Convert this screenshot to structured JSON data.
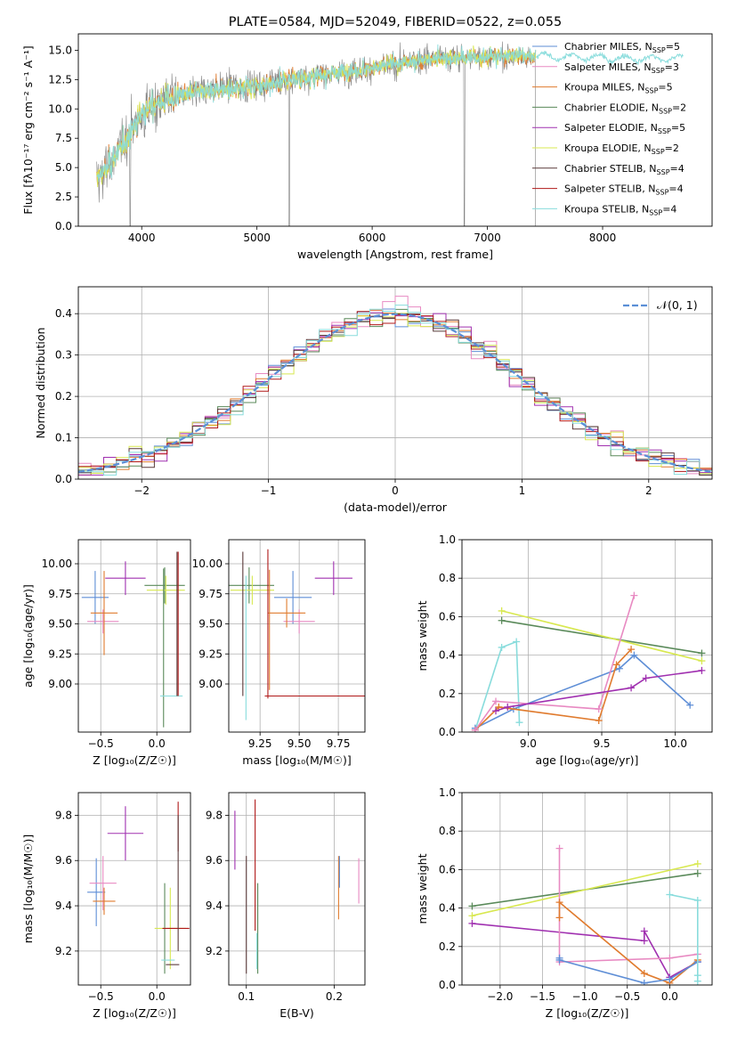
{
  "figure_title": "PLATE=0584, MJD=52049, FIBERID=0522, z=0.055",
  "chart_data": [
    {
      "type": "line",
      "name": "spectrum",
      "xlabel": "wavelength [Angstrom, rest frame]",
      "ylabel": "Flux [f$_\\lambda$10$^{-17}$ erg cm$^{-2}$ s$^{-1}$ A$^{-1}$]",
      "ylabel_display": "Flux [fλ10⁻¹⁷ erg cm⁻² s⁻¹ A⁻¹]",
      "xlim": [
        3450,
        8950
      ],
      "ylim": [
        0,
        16.4
      ],
      "xticks": [
        "4000",
        "5000",
        "6000",
        "7000",
        "8000"
      ],
      "yticks": [
        "0.0",
        "2.5",
        "5.0",
        "7.5",
        "10.0",
        "12.5",
        "15.0"
      ],
      "grid": false,
      "legend_position": "upper right",
      "legend": [
        {
          "label": "Chabrier MILES, N$_{SSP}$=5",
          "color": "#5e8ed6"
        },
        {
          "label": "Salpeter MILES, N$_{SSP}$=3",
          "color": "#e88ac2"
        },
        {
          "label": "Kroupa MILES, N$_{SSP}$=5",
          "color": "#e07b2e"
        },
        {
          "label": "Chabrier ELODIE, N$_{SSP}$=2",
          "color": "#5a8a5a"
        },
        {
          "label": "Salpeter ELODIE, N$_{SSP}$=5",
          "color": "#a030b0"
        },
        {
          "label": "Kroupa ELODIE, N$_{SSP}$=2",
          "color": "#d8e850"
        },
        {
          "label": "Chabrier STELIB, N$_{SSP}$=4",
          "color": "#5a3a3a"
        },
        {
          "label": "Salpeter STELIB, N$_{SSP}$=4",
          "color": "#b01818"
        },
        {
          "label": "Kroupa STELIB, N$_{SSP}$=4",
          "color": "#88dcdc"
        }
      ],
      "data_color": "#808080",
      "continuum_points": [
        [
          3610,
          4.0
        ],
        [
          3700,
          5.0
        ],
        [
          3850,
          7.2
        ],
        [
          4000,
          9.6
        ],
        [
          4200,
          10.8
        ],
        [
          4500,
          11.5
        ],
        [
          5000,
          12.0
        ],
        [
          5500,
          12.8
        ],
        [
          6000,
          13.5
        ],
        [
          6500,
          14.3
        ],
        [
          7000,
          14.5
        ],
        [
          7400,
          14.5
        ],
        [
          7800,
          14.4
        ],
        [
          8200,
          14.3
        ],
        [
          8600,
          14.3
        ]
      ],
      "drops": [
        3900,
        5280,
        6800,
        7420
      ]
    },
    {
      "type": "line",
      "name": "residual histogram",
      "xlabel": "(data-model)/error",
      "ylabel": "Normed distribution",
      "xlim": [
        -2.5,
        2.5
      ],
      "ylim": [
        0,
        0.465
      ],
      "xticks": [
        "−2",
        "−1",
        "0",
        "1",
        "2"
      ],
      "yticks": [
        "0.0",
        "0.1",
        "0.2",
        "0.3",
        "0.4"
      ],
      "grid": true,
      "legend_position": "upper right",
      "reference_label": "$\\mathcal{N}(0,1)$",
      "reference_label_display": "𝒩(0, 1)",
      "reference_color": "#5b8fd6",
      "bin_width": 0.1,
      "series_colors": [
        "#5e8ed6",
        "#e88ac2",
        "#e07b2e",
        "#5a8a5a",
        "#a030b0",
        "#d8e850",
        "#5a3a3a",
        "#b01818",
        "#88dcdc"
      ]
    },
    {
      "type": "scatter",
      "name": "age vs Z",
      "xlabel": "Z [log$_{10}$($Z/Z_\\odot$)]",
      "xlabel_display": "Z [log₁₀(Z/Z☉)]",
      "ylabel": "age  [log$_{10}$($age/yr$)]",
      "ylabel_display": "age  [log₁₀(age/yr)]",
      "xlim": [
        -0.7,
        0.3
      ],
      "ylim": [
        8.6,
        10.2
      ],
      "xticks": [
        "−0.5",
        "0.0"
      ],
      "yticks": [
        "9.00",
        "9.25",
        "9.50",
        "9.75",
        "10.00"
      ],
      "grid": true,
      "points": [
        {
          "color": "#5e8ed6",
          "x": -0.55,
          "y": 9.72,
          "xerr": 0.12,
          "yerr": 0.22
        },
        {
          "color": "#e88ac2",
          "x": -0.48,
          "y": 9.52,
          "xerr": 0.14,
          "yerr": 0.1
        },
        {
          "color": "#e07b2e",
          "x": -0.47,
          "y": 9.59,
          "xerr": 0.12,
          "yerr": 0.35
        },
        {
          "color": "#a030b0",
          "x": -0.28,
          "y": 9.88,
          "xerr": 0.18,
          "yerr": 0.14
        },
        {
          "color": "#5a8a5a",
          "x": 0.07,
          "y": 9.82,
          "xerr": 0.18,
          "yerr": 0.15
        },
        {
          "color": "#d8e850",
          "x": 0.08,
          "y": 9.78,
          "xerr": 0.17,
          "yerr": 0.12
        },
        {
          "color": "#5a8a5a",
          "x": 0.06,
          "y": 9.3,
          "xerr": 0.0,
          "yerr": 0.66
        },
        {
          "color": "#88dcdc",
          "x": 0.13,
          "y": 8.9,
          "xerr": 0.1,
          "yerr": 0.0
        },
        {
          "color": "#5a3a3a",
          "x": 0.18,
          "y": 9.5,
          "xerr": 0.0,
          "yerr": 0.6
        },
        {
          "color": "#b01818",
          "x": 0.19,
          "y": 9.5,
          "xerr": 0.0,
          "yerr": 0.6
        }
      ]
    },
    {
      "type": "scatter",
      "name": "age vs mass",
      "xlabel": "mass [log$_{10}$($M/M_\\odot$)]",
      "xlabel_display": "mass [log₁₀(M/M☉)]",
      "ylabel": "",
      "xlim": [
        9.05,
        9.92
      ],
      "ylim": [
        8.6,
        10.2
      ],
      "xticks": [
        "9.25",
        "9.50",
        "9.75"
      ],
      "yticks": [
        "9.00",
        "9.25",
        "9.50",
        "9.75",
        "10.00"
      ],
      "grid": true,
      "points": [
        {
          "color": "#5e8ed6",
          "x": 9.46,
          "y": 9.72,
          "xerr": 0.12,
          "yerr": 0.22
        },
        {
          "color": "#e88ac2",
          "x": 9.5,
          "y": 9.52,
          "xerr": 0.1,
          "yerr": 0.1
        },
        {
          "color": "#e07b2e",
          "x": 9.42,
          "y": 9.59,
          "xerr": 0.12,
          "yerr": 0.12
        },
        {
          "color": "#a030b0",
          "x": 9.72,
          "y": 9.88,
          "xerr": 0.12,
          "yerr": 0.14
        },
        {
          "color": "#5a8a5a",
          "x": 9.18,
          "y": 9.82,
          "xerr": 0.16,
          "yerr": 0.15
        },
        {
          "color": "#d8e850",
          "x": 9.2,
          "y": 9.78,
          "xerr": 0.14,
          "yerr": 0.12
        },
        {
          "color": "#5a3a3a",
          "x": 9.14,
          "y": 9.5,
          "xerr": 0.0,
          "yerr": 0.6
        },
        {
          "color": "#88dcdc",
          "x": 9.16,
          "y": 9.3,
          "xerr": 0.0,
          "yerr": 0.6
        },
        {
          "color": "#e07b2e",
          "x": 9.31,
          "y": 9.45,
          "xerr": 0.0,
          "yerr": 0.5
        },
        {
          "color": "#b01818",
          "x": 9.3,
          "y": 9.5,
          "xerr": 0.0,
          "yerr": 0.62
        },
        {
          "color": "#b01818",
          "x": 9.6,
          "y": 8.9,
          "xerr": 0.32,
          "yerr": 0.0
        }
      ]
    },
    {
      "type": "line",
      "name": "mass weight vs age",
      "xlabel": "age  [log$_{10}$($age/yr$)]",
      "xlabel_display": "age  [log₁₀(age/yr)]",
      "ylabel": "mass weight",
      "xlim": [
        8.55,
        10.25
      ],
      "ylim": [
        0,
        1.0
      ],
      "xticks": [
        "9.0",
        "9.5",
        "10.0"
      ],
      "yticks": [
        "0.0",
        "0.2",
        "0.4",
        "0.6",
        "0.8",
        "1.0"
      ],
      "grid": true,
      "series": [
        {
          "color": "#88dcdc",
          "x": [
            8.64,
            8.82,
            8.92,
            8.94
          ],
          "y": [
            0.01,
            0.44,
            0.47,
            0.05
          ]
        },
        {
          "color": "#5a8a5a",
          "x": [
            8.82,
            10.18
          ],
          "y": [
            0.58,
            0.41
          ]
        },
        {
          "color": "#d8e850",
          "x": [
            8.82,
            10.18
          ],
          "y": [
            0.63,
            0.37
          ]
        },
        {
          "color": "#5e8ed6",
          "x": [
            8.64,
            8.9,
            9.62,
            9.72,
            10.1
          ],
          "y": [
            0.02,
            0.12,
            0.33,
            0.4,
            0.14
          ]
        },
        {
          "color": "#e07b2e",
          "x": [
            8.64,
            8.8,
            9.48,
            9.6,
            9.7
          ],
          "y": [
            0.01,
            0.13,
            0.06,
            0.35,
            0.43
          ]
        },
        {
          "color": "#e88ac2",
          "x": [
            8.64,
            8.78,
            9.48,
            9.72
          ],
          "y": [
            0.01,
            0.16,
            0.12,
            0.71
          ]
        },
        {
          "color": "#a030b0",
          "x": [
            8.78,
            8.86,
            9.7,
            9.8,
            10.18
          ],
          "y": [
            0.11,
            0.13,
            0.23,
            0.28,
            0.32
          ]
        }
      ]
    },
    {
      "type": "scatter",
      "name": "mass vs Z",
      "xlabel": "Z [log$_{10}$($Z/Z_\\odot$)]",
      "xlabel_display": "Z [log₁₀(Z/Z☉)]",
      "ylabel": "mass [log$_{10}$($M/M_\\odot$)]",
      "ylabel_display": "mass [log₁₀(M/M☉)]",
      "xlim": [
        -0.7,
        0.3
      ],
      "ylim": [
        9.05,
        9.9
      ],
      "xticks": [
        "−0.5",
        "0.0"
      ],
      "yticks": [
        "9.2",
        "9.4",
        "9.6",
        "9.8"
      ],
      "grid": true,
      "points": [
        {
          "color": "#5e8ed6",
          "x": -0.54,
          "y": 9.46,
          "xerr": 0.08,
          "yerr": 0.15
        },
        {
          "color": "#e88ac2",
          "x": -0.48,
          "y": 9.5,
          "xerr": 0.12,
          "yerr": 0.12
        },
        {
          "color": "#e07b2e",
          "x": -0.47,
          "y": 9.42,
          "xerr": 0.1,
          "yerr": 0.06
        },
        {
          "color": "#a030b0",
          "x": -0.28,
          "y": 9.72,
          "xerr": 0.16,
          "yerr": 0.12
        },
        {
          "color": "#5a8a5a",
          "x": 0.07,
          "y": 9.3,
          "xerr": 0.0,
          "yerr": 0.2
        },
        {
          "color": "#d8e850",
          "x": 0.12,
          "y": 9.3,
          "xerr": 0.14,
          "yerr": 0.18
        },
        {
          "color": "#88dcdc",
          "x": 0.1,
          "y": 9.16,
          "xerr": 0.06,
          "yerr": 0.0
        },
        {
          "color": "#5a3a3a",
          "x": 0.14,
          "y": 9.14,
          "xerr": 0.06,
          "yerr": 0.0
        },
        {
          "color": "#b01818",
          "x": 0.17,
          "y": 9.3,
          "xerr": 0.12,
          "yerr": 0.0
        },
        {
          "color": "#b01818",
          "x": 0.19,
          "y": 9.75,
          "xerr": 0.0,
          "yerr": 0.11
        },
        {
          "color": "#5a3a3a",
          "x": 0.19,
          "y": 9.5,
          "xerr": 0.0,
          "yerr": 0.3
        }
      ]
    },
    {
      "type": "scatter",
      "name": "mass vs E(B-V)",
      "xlabel": "E(B-V)",
      "ylabel": "",
      "xlim": [
        0.08,
        0.235
      ],
      "ylim": [
        9.05,
        9.9
      ],
      "xticks": [
        "0.1",
        "0.2"
      ],
      "yticks": [
        "9.2",
        "9.4",
        "9.6",
        "9.8"
      ],
      "grid": true,
      "points": [
        {
          "color": "#a030b0",
          "x": 0.087,
          "y": 9.69,
          "xerr": 0.0,
          "yerr": 0.13
        },
        {
          "color": "#5a3a3a",
          "x": 0.1,
          "y": 9.36,
          "xerr": 0.0,
          "yerr": 0.26
        },
        {
          "color": "#b01818",
          "x": 0.11,
          "y": 9.58,
          "xerr": 0.0,
          "yerr": 0.29
        },
        {
          "color": "#5a8a5a",
          "x": 0.113,
          "y": 9.3,
          "xerr": 0.0,
          "yerr": 0.2
        },
        {
          "color": "#88dcdc",
          "x": 0.112,
          "y": 9.2,
          "xerr": 0.0,
          "yerr": 0.08
        },
        {
          "color": "#e07b2e",
          "x": 0.205,
          "y": 9.48,
          "xerr": 0.0,
          "yerr": 0.14
        },
        {
          "color": "#5e8ed6",
          "x": 0.206,
          "y": 9.55,
          "xerr": 0.0,
          "yerr": 0.07
        },
        {
          "color": "#e88ac2",
          "x": 0.228,
          "y": 9.51,
          "xerr": 0.0,
          "yerr": 0.1
        }
      ]
    },
    {
      "type": "line",
      "name": "mass weight vs Z",
      "xlabel": "Z [log$_{10}$($Z/Z_\\odot$)]",
      "xlabel_display": "Z [log₁₀(Z/Z☉)]",
      "ylabel": "mass weight",
      "xlim": [
        -2.45,
        0.5
      ],
      "ylim": [
        0,
        1.0
      ],
      "xticks": [
        "−2.0",
        "−1.5",
        "−1.0",
        "−0.5",
        "0.0"
      ],
      "yticks": [
        "0.0",
        "0.2",
        "0.4",
        "0.6",
        "0.8",
        "1.0"
      ],
      "grid": true,
      "series": [
        {
          "color": "#5a8a5a",
          "x": [
            -2.33,
            0.33
          ],
          "y": [
            0.41,
            0.58
          ]
        },
        {
          "color": "#d8e850",
          "x": [
            -2.33,
            0.33
          ],
          "y": [
            0.36,
            0.63
          ]
        },
        {
          "color": "#a030b0",
          "x": [
            -2.33,
            -0.3,
            -0.3,
            0.0,
            0.33
          ],
          "y": [
            0.32,
            0.23,
            0.28,
            0.04,
            0.12
          ]
        },
        {
          "color": "#e88ac2",
          "x": [
            -1.3,
            -1.3,
            0.0,
            0.33
          ],
          "y": [
            0.71,
            0.12,
            0.14,
            0.16
          ]
        },
        {
          "color": "#e07b2e",
          "x": [
            -1.3,
            -1.3,
            -0.3,
            0.0,
            0.33
          ],
          "y": [
            0.35,
            0.43,
            0.06,
            0.01,
            0.13
          ]
        },
        {
          "color": "#5e8ed6",
          "x": [
            -1.3,
            -1.3,
            -0.3,
            0.0,
            0.33
          ],
          "y": [
            0.14,
            0.13,
            0.01,
            0.03,
            0.12
          ]
        },
        {
          "color": "#88dcdc",
          "x": [
            0.0,
            0.33,
            0.33,
            0.33
          ],
          "y": [
            0.47,
            0.44,
            0.05,
            0.02
          ]
        }
      ]
    }
  ]
}
